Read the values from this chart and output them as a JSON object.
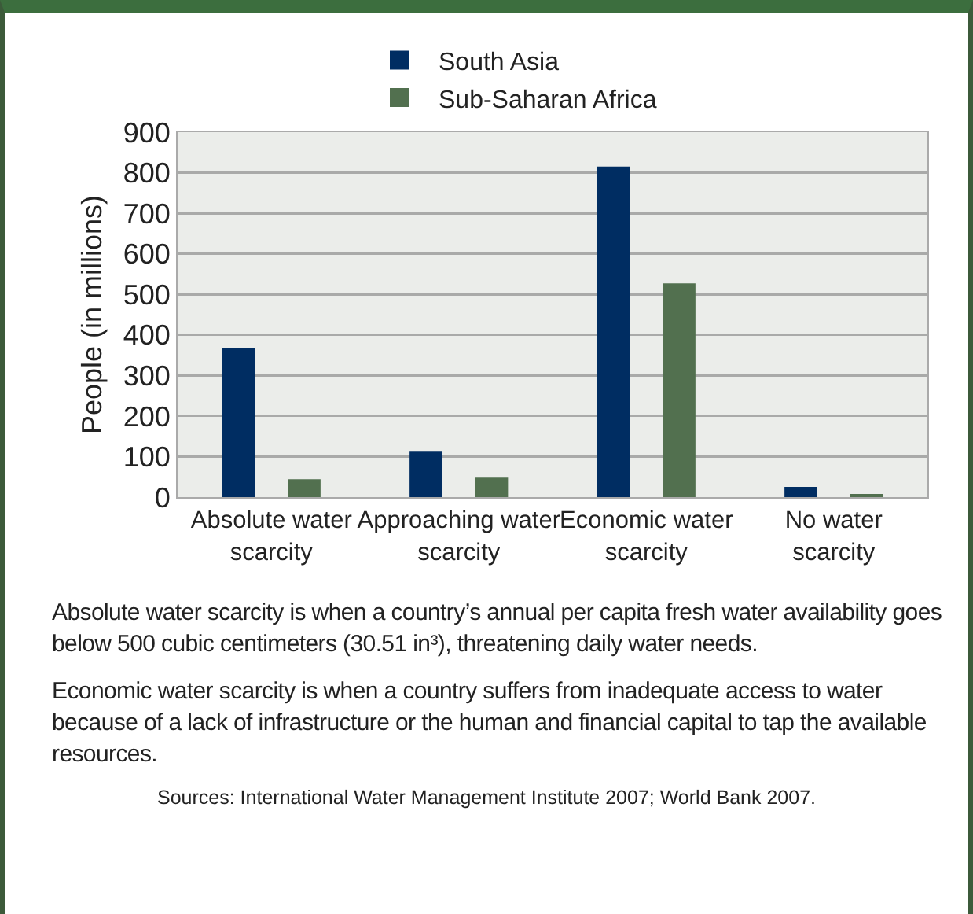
{
  "chart_data": {
    "type": "bar",
    "ylabel": "People (in millions)",
    "categories": [
      "Absolute water scarcity",
      "Approaching water scarcity",
      "Economic water scarcity",
      "No water scarcity"
    ],
    "series": [
      {
        "name": "South Asia",
        "color": "#002d62",
        "values": [
          368,
          112,
          815,
          25
        ]
      },
      {
        "name": "Sub-Saharan Africa",
        "color": "#52704f",
        "values": [
          44,
          48,
          527,
          8
        ]
      }
    ],
    "ylim": [
      0,
      900
    ],
    "yticks": [
      0,
      100,
      200,
      300,
      400,
      500,
      600,
      700,
      800,
      900
    ],
    "grid": "y",
    "legend": "top",
    "annotations": [
      "Absolute water scarcity is when a country’s annual per capita fresh water availability goes below 500 cubic centimeters (30.51 in³), threatening daily water needs.",
      "Economic water scarcity is when a country suffers from inadequate access to water because of a lack of infrastructure or the human and financial capital to tap the available resources.",
      "Sources: International Water Management Institute 2007; World Bank 2007."
    ]
  }
}
